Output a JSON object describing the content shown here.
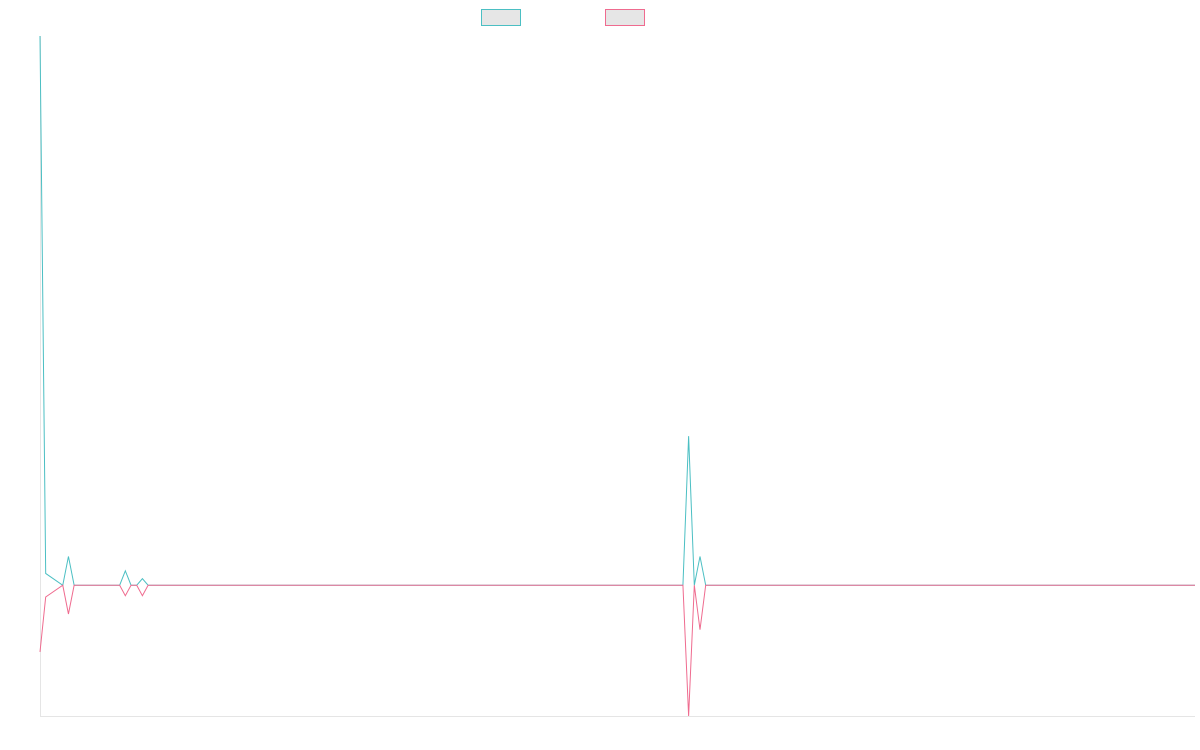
{
  "chart_data": {
    "type": "line",
    "x": [
      0,
      1,
      4,
      5,
      6,
      14,
      15,
      16,
      17,
      18,
      19,
      113,
      114,
      115,
      116,
      117,
      203
    ],
    "xlim": [
      0,
      203
    ],
    "ylim": [
      -10,
      42
    ],
    "series": [
      {
        "color": "#4bbfc3",
        "values": [
          42,
          0.9,
          0,
          2.2,
          0,
          0,
          1.1,
          0,
          0,
          0.5,
          0,
          0,
          11.4,
          0,
          2.2,
          0,
          0
        ]
      },
      {
        "color": "#ef6b8f",
        "values": [
          -5.1,
          -0.9,
          0,
          -2.2,
          0,
          0,
          -0.8,
          0,
          0,
          -0.8,
          0,
          0,
          -10,
          0,
          -3.4,
          0,
          0
        ]
      }
    ]
  }
}
